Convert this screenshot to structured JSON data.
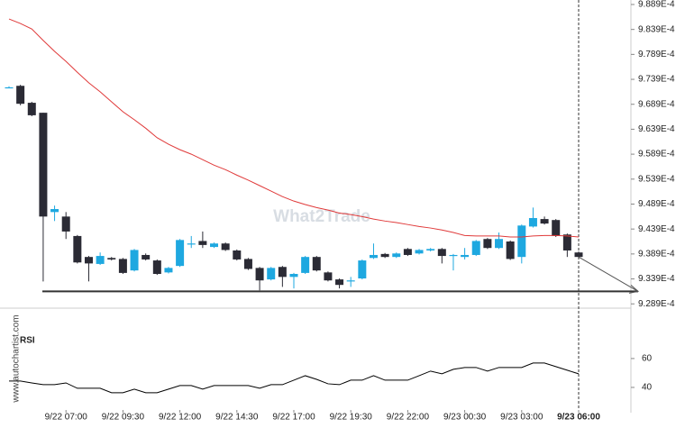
{
  "chart_data": [
    {
      "type": "candlestick",
      "watermark": "What2Trade",
      "categories": [
        null,
        null,
        null,
        null,
        null,
        "9/22 07:00",
        null,
        null,
        null,
        null,
        "9/22 09:30",
        null,
        null,
        null,
        null,
        "9/22 12:00",
        null,
        null,
        null,
        null,
        "9/22 14:30",
        null,
        null,
        null,
        null,
        "9/22 17:00",
        null,
        null,
        null,
        null,
        "9/22 19:30",
        null,
        null,
        null,
        null,
        "9/22 22:00",
        null,
        null,
        null,
        null,
        "9/23 00:30",
        null,
        null,
        null,
        null,
        "9/23 03:00",
        null,
        null,
        null,
        null,
        "9/23 06:00"
      ],
      "open": [
        0.0009723,
        0.0009726,
        0.0009692,
        0.0009672,
        0.0009473,
        0.0009464,
        0.0009425,
        0.0009383,
        0.0009369,
        0.0009381,
        0.0009379,
        0.0009356,
        0.0009387,
        0.0009376,
        0.0009352,
        0.0009365,
        0.000941,
        0.0009415,
        0.0009403,
        0.000941,
        0.0009396,
        0.0009379,
        0.0009361,
        0.0009338,
        0.0009363,
        0.0009343,
        0.0009351,
        0.0009383,
        0.0009352,
        0.0009338,
        0.0009334,
        0.000934,
        0.0009381,
        0.0009389,
        0.0009383,
        0.0009399,
        0.000939,
        0.0009396,
        0.0009399,
        0.0009385,
        0.0009383,
        0.0009387,
        0.0009419,
        0.0009401,
        0.0009414,
        0.0009383,
        0.0009444,
        0.0009459,
        0.0009457,
        0.0009428,
        0.0009392
      ],
      "high": [
        0.0009725,
        0.0009728,
        0.0009694,
        0.0009672,
        0.0009486,
        0.0009473,
        0.0009427,
        0.0009385,
        0.0009392,
        0.0009383,
        0.0009381,
        0.0009399,
        0.000939,
        0.0009378,
        0.0009363,
        0.0009419,
        0.0009425,
        0.0009434,
        0.0009412,
        0.0009412,
        0.0009398,
        0.0009381,
        0.0009363,
        0.0009363,
        0.0009365,
        0.0009351,
        0.0009385,
        0.0009385,
        0.0009354,
        0.000934,
        0.0009343,
        0.0009378,
        0.000941,
        0.0009391,
        0.0009392,
        0.0009401,
        0.0009399,
        0.0009401,
        0.0009401,
        0.0009389,
        0.0009401,
        0.0009417,
        0.0009421,
        0.0009432,
        0.0009416,
        0.0009448,
        0.0009482,
        0.0009464,
        0.0009459,
        0.000943,
        0.0009394
      ],
      "low": [
        0.0009721,
        0.0009687,
        0.0009665,
        0.0009334,
        0.0009455,
        0.0009419,
        0.000937,
        0.0009334,
        0.0009367,
        0.0009376,
        0.0009349,
        0.0009354,
        0.0009376,
        0.0009347,
        0.000935,
        0.0009363,
        0.0009401,
        0.0009401,
        0.0009401,
        0.0009395,
        0.0009376,
        0.0009357,
        0.0009316,
        0.0009336,
        0.0009323,
        0.000932,
        0.0009349,
        0.0009354,
        0.0009334,
        0.000932,
        0.0009323,
        0.0009338,
        0.0009379,
        0.0009381,
        0.0009381,
        0.0009385,
        0.0009388,
        0.0009394,
        0.000937,
        0.0009356,
        0.0009378,
        0.0009385,
        0.0009399,
        0.0009399,
        0.0009377,
        0.000937,
        0.0009442,
        0.0009448,
        0.0009423,
        0.0009383,
        0.0009381
      ],
      "close": [
        0.0009723,
        0.000969,
        0.0009667,
        0.0009464,
        0.0009479,
        0.0009434,
        0.0009372,
        0.000937,
        0.0009385,
        0.0009378,
        0.0009351,
        0.0009397,
        0.0009378,
        0.0009349,
        0.0009361,
        0.0009417,
        0.000941,
        0.0009407,
        0.000941,
        0.0009397,
        0.0009378,
        0.0009359,
        0.0009336,
        0.0009361,
        0.0009343,
        0.0009349,
        0.0009383,
        0.0009356,
        0.0009336,
        0.0009327,
        0.0009336,
        0.0009376,
        0.0009387,
        0.0009383,
        0.000939,
        0.0009387,
        0.0009397,
        0.0009399,
        0.0009385,
        0.0009387,
        0.0009387,
        0.0009415,
        0.0009401,
        0.0009419,
        0.0009379,
        0.0009446,
        0.0009461,
        0.000945,
        0.0009425,
        0.0009396,
        0.0009383
      ],
      "ma": [
        0.000986,
        0.0009851,
        0.000984,
        0.0009817,
        0.0009795,
        0.0009775,
        0.0009753,
        0.0009732,
        0.0009714,
        0.0009694,
        0.0009674,
        0.0009658,
        0.0009641,
        0.0009622,
        0.0009609,
        0.0009598,
        0.0009589,
        0.0009578,
        0.0009567,
        0.0009558,
        0.0009547,
        0.0009537,
        0.0009526,
        0.0009515,
        0.0009504,
        0.0009495,
        0.0009488,
        0.0009482,
        0.0009477,
        0.0009471,
        0.0009468,
        0.0009464,
        0.0009459,
        0.0009455,
        0.0009452,
        0.0009448,
        0.0009444,
        0.0009441,
        0.0009437,
        0.0009432,
        0.0009426,
        0.0009425,
        0.0009425,
        0.0009425,
        0.0009423,
        0.0009423,
        0.0009425,
        0.0009426,
        0.0009426,
        0.0009425,
        0.0009423
      ],
      "support": 0.0009314,
      "up_color": "#1ea8e0",
      "down_color": "#2b2b35",
      "ma_color": "#e03a3a",
      "ylim": [
        0.0009284,
        0.0009898
      ],
      "yticks": [
        {
          "value": 0.0009889,
          "label": "9.889E-4"
        },
        {
          "value": 0.0009839,
          "label": "9.839E-4"
        },
        {
          "value": 0.0009789,
          "label": "9.789E-4"
        },
        {
          "value": 0.0009739,
          "label": "9.739E-4"
        },
        {
          "value": 0.0009689,
          "label": "9.689E-4"
        },
        {
          "value": 0.0009639,
          "label": "9.639E-4"
        },
        {
          "value": 0.0009589,
          "label": "9.589E-4"
        },
        {
          "value": 0.0009539,
          "label": "9.539E-4"
        },
        {
          "value": 0.0009489,
          "label": "9.489E-4"
        },
        {
          "value": 0.0009439,
          "label": "9.439E-4"
        },
        {
          "value": 0.0009389,
          "label": "9.389E-4"
        },
        {
          "value": 0.0009339,
          "label": "9.339E-4"
        },
        {
          "value": 0.0009289,
          "label": "9.289E-4"
        }
      ]
    },
    {
      "type": "line",
      "title": "RSI",
      "source": "www.autochartist.com",
      "values": [
        44.4,
        44.4,
        43.1,
        41.9,
        41.9,
        43.1,
        39.4,
        39.4,
        39.4,
        36.3,
        36.3,
        38.8,
        36.3,
        36.3,
        38.8,
        41.3,
        41.3,
        38.8,
        41.3,
        41.3,
        41.3,
        41.3,
        39.4,
        41.9,
        41.9,
        45.0,
        48.1,
        45.6,
        42.5,
        41.9,
        45.0,
        45.0,
        48.1,
        45.0,
        45.0,
        45.0,
        48.1,
        51.3,
        49.4,
        52.5,
        53.8,
        53.8,
        51.3,
        53.8,
        53.8,
        53.8,
        56.9,
        56.9,
        54.4,
        51.9,
        49.4
      ],
      "color": "#000000",
      "ylim": [
        22.5,
        93
      ],
      "yticks": [
        40,
        60
      ]
    }
  ]
}
